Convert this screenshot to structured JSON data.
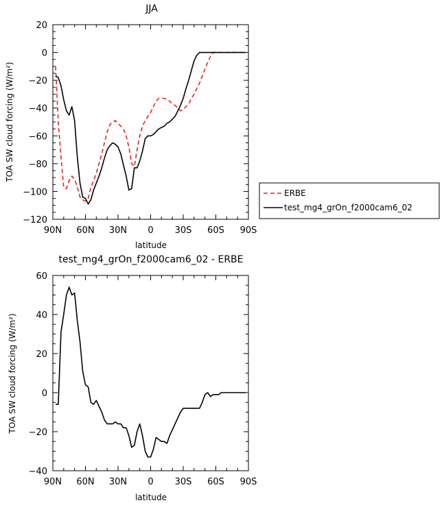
{
  "chart_data": [
    {
      "type": "line",
      "title": "JJA",
      "xlabel": "latitude",
      "ylabel": "TOA SW cloud forcing (W/m²)",
      "x_ticks": [
        {
          "value": 90,
          "label": "90N"
        },
        {
          "value": 60,
          "label": "60N"
        },
        {
          "value": 30,
          "label": "30N"
        },
        {
          "value": 0,
          "label": "0"
        },
        {
          "value": -30,
          "label": "30S"
        },
        {
          "value": -60,
          "label": "60S"
        },
        {
          "value": -90,
          "label": "90S"
        }
      ],
      "xlim": [
        90,
        -90
      ],
      "ylim": [
        -120,
        20
      ],
      "y_ticks": [
        20,
        0,
        -20,
        -40,
        -60,
        -80,
        -100,
        -120
      ],
      "legend_position": "right",
      "series": [
        {
          "name": "ERBE",
          "color": "#e8201c",
          "dash": "dashed",
          "x": [
            87.5,
            85,
            82.5,
            80,
            77.5,
            75,
            72.5,
            70,
            67.5,
            65,
            62.5,
            60,
            57.5,
            55,
            52.5,
            50,
            47.5,
            45,
            42.5,
            40,
            37.5,
            35,
            32.5,
            30,
            27.5,
            25,
            22.5,
            20,
            17.5,
            15,
            12.5,
            10,
            7.5,
            5,
            2.5,
            0,
            -2.5,
            -5,
            -7.5,
            -10,
            -12.5,
            -15,
            -17.5,
            -20,
            -22.5,
            -25,
            -27.5,
            -30,
            -32.5,
            -35,
            -37.5,
            -40,
            -42.5,
            -45,
            -47.5,
            -50,
            -52.5,
            -55,
            -57.5,
            -60,
            -62.5,
            -65,
            -67.5,
            -70,
            -72.5,
            -75,
            -77.5,
            -80,
            -82.5,
            -85,
            -87.5
          ],
          "values": [
            -10,
            -50,
            -75,
            -97,
            -98,
            -92,
            -89,
            -91,
            -97,
            -104,
            -106,
            -107,
            -105,
            -97,
            -92,
            -87,
            -80,
            -73,
            -65,
            -57,
            -52,
            -50,
            -49,
            -51,
            -53,
            -55,
            -60,
            -68,
            -80,
            -82,
            -70,
            -60,
            -53,
            -49,
            -46,
            -43,
            -39,
            -35,
            -33,
            -33,
            -33,
            -34,
            -35,
            -37,
            -38,
            -40,
            -42,
            -41,
            -39,
            -37,
            -33,
            -30,
            -26,
            -22,
            -17,
            -12,
            -7,
            -3,
            0,
            0,
            0,
            0,
            0,
            0,
            0,
            0,
            0,
            0,
            0,
            0,
            0
          ]
        },
        {
          "name": "test_mg4_grOn_f2000cam6_02",
          "color": "#000000",
          "dash": "solid",
          "x": [
            87.5,
            85,
            82.5,
            80,
            77.5,
            75,
            72.5,
            70,
            67.5,
            65,
            62.5,
            60,
            57.5,
            55,
            52.5,
            50,
            47.5,
            45,
            42.5,
            40,
            37.5,
            35,
            32.5,
            30,
            27.5,
            25,
            22.5,
            20,
            17.5,
            15,
            12.5,
            10,
            7.5,
            5,
            2.5,
            0,
            -2.5,
            -5,
            -7.5,
            -10,
            -12.5,
            -15,
            -17.5,
            -20,
            -22.5,
            -25,
            -27.5,
            -30,
            -32.5,
            -35,
            -37.5,
            -40,
            -42.5,
            -45,
            -47.5,
            -50,
            -52.5,
            -55,
            -57.5,
            -60,
            -62.5,
            -65,
            -67.5,
            -70,
            -72.5,
            -75,
            -77.5,
            -80,
            -82.5,
            -85,
            -87.5
          ],
          "values": [
            -17,
            -18,
            -24,
            -34,
            -42,
            -45,
            -39,
            -49,
            -75,
            -94,
            -104,
            -105,
            -109,
            -106,
            -99,
            -94,
            -89,
            -83,
            -76,
            -70,
            -67,
            -65,
            -66,
            -68,
            -73,
            -81,
            -89,
            -99,
            -98,
            -83,
            -83,
            -78,
            -71,
            -62,
            -60,
            -60,
            -59,
            -57,
            -55,
            -54,
            -53,
            -51,
            -50,
            -48,
            -46,
            -42,
            -38,
            -33,
            -26,
            -20,
            -13,
            -6,
            -2,
            0,
            0,
            0,
            0,
            0,
            0,
            0,
            0,
            0,
            0,
            0,
            0,
            0,
            0,
            0,
            0,
            0,
            0
          ]
        }
      ]
    },
    {
      "type": "line",
      "title": "test_mg4_grOn_f2000cam6_02 - ERBE",
      "xlabel": "latitude",
      "ylabel": "TOA SW cloud forcing (W/m²)",
      "x_ticks": [
        {
          "value": 90,
          "label": "90N"
        },
        {
          "value": 60,
          "label": "60N"
        },
        {
          "value": 30,
          "label": "30N"
        },
        {
          "value": 0,
          "label": "0"
        },
        {
          "value": -30,
          "label": "30S"
        },
        {
          "value": -60,
          "label": "60S"
        },
        {
          "value": -90,
          "label": "90S"
        }
      ],
      "xlim": [
        90,
        -90
      ],
      "ylim": [
        -40,
        60
      ],
      "y_ticks": [
        60,
        40,
        20,
        0,
        -20,
        -40
      ],
      "series": [
        {
          "name": "",
          "color": "#000000",
          "dash": "solid",
          "x": [
            87.5,
            85,
            82.5,
            80,
            77.5,
            75,
            72.5,
            70,
            67.5,
            65,
            62.5,
            60,
            57.5,
            55,
            52.5,
            50,
            47.5,
            45,
            42.5,
            40,
            37.5,
            35,
            32.5,
            30,
            27.5,
            25,
            22.5,
            20,
            17.5,
            15,
            12.5,
            10,
            7.5,
            5,
            2.5,
            0,
            -2.5,
            -5,
            -7.5,
            -10,
            -12.5,
            -15,
            -17.5,
            -20,
            -22.5,
            -25,
            -27.5,
            -30,
            -32.5,
            -35,
            -37.5,
            -40,
            -42.5,
            -45,
            -47.5,
            -50,
            -52.5,
            -55,
            -57.5,
            -60,
            -62.5,
            -65,
            -67.5,
            -70,
            -72.5,
            -75,
            -77.5,
            -80,
            -82.5,
            -85,
            -87.5
          ],
          "values": [
            -6,
            -6,
            31,
            40,
            50,
            54,
            50,
            51,
            37,
            26,
            11,
            4,
            3,
            -5,
            -6,
            -4,
            -7,
            -10,
            -14,
            -16,
            -16,
            -16,
            -15,
            -16,
            -16,
            -18,
            -18,
            -22,
            -28,
            -27,
            -20,
            -16,
            -22,
            -30,
            -33,
            -33,
            -29,
            -23,
            -24,
            -25,
            -25,
            -26,
            -22,
            -19,
            -16,
            -13,
            -10,
            -8,
            -8,
            -8,
            -8,
            -8,
            -8,
            -8,
            -5,
            -1,
            0,
            -2,
            -1,
            -1,
            -1,
            0,
            0,
            0,
            0,
            0,
            0,
            0,
            0,
            0,
            0
          ]
        }
      ]
    }
  ]
}
